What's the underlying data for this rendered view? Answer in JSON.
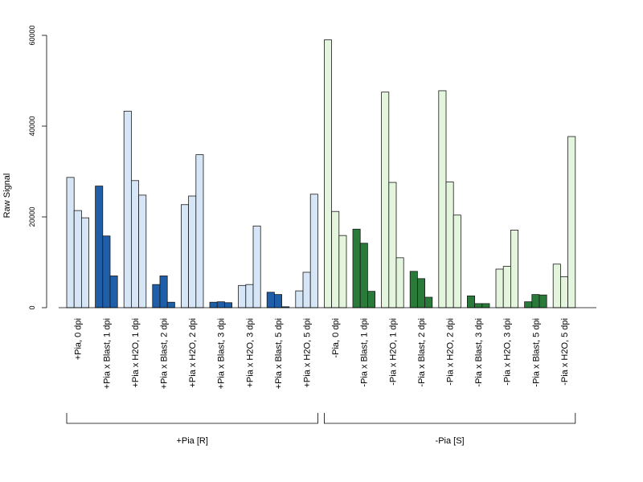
{
  "chart_data": {
    "type": "bar",
    "ylabel": "Raw Signal",
    "ylim": [
      0,
      60000
    ],
    "yticks": [
      0,
      20000,
      40000,
      60000
    ],
    "grid": false,
    "colors": {
      "light_blue": "#d6e6f7",
      "dark_blue": "#1f5ea8",
      "light_green": "#e3f5dc",
      "dark_green": "#2a7a3a"
    },
    "categories": [
      {
        "label": "+Pia, 0 dpi",
        "color": "light_blue",
        "values": [
          28700,
          21400,
          19800
        ]
      },
      {
        "label": "+Pia x Blast, 1 dpi",
        "color": "dark_blue",
        "values": [
          26800,
          15800,
          7000
        ]
      },
      {
        "label": "+Pia x H2O, 1 dpi",
        "color": "light_blue",
        "values": [
          43300,
          28000,
          24800
        ]
      },
      {
        "label": "+Pia x Blast, 2 dpi",
        "color": "dark_blue",
        "values": [
          5100,
          7000,
          1200
        ]
      },
      {
        "label": "+Pia x H2O, 2 dpi",
        "color": "light_blue",
        "values": [
          22700,
          24600,
          33700
        ]
      },
      {
        "label": "+Pia x Blast, 3 dpi",
        "color": "dark_blue",
        "values": [
          1200,
          1300,
          1100
        ]
      },
      {
        "label": "+Pia x H2O, 3 dpi",
        "color": "light_blue",
        "values": [
          4900,
          5100,
          18000
        ]
      },
      {
        "label": "+Pia x Blast, 5 dpi",
        "color": "dark_blue",
        "values": [
          3400,
          2900,
          200
        ]
      },
      {
        "label": "+Pia x H2O, 5 dpi",
        "color": "light_blue",
        "values": [
          3700,
          7800,
          25000
        ]
      },
      {
        "label": "-Pia, 0 dpi",
        "color": "light_green",
        "values": [
          59000,
          21200,
          15900
        ]
      },
      {
        "label": "-Pia x Blast, 1 dpi",
        "color": "dark_green",
        "values": [
          17300,
          14200,
          3600
        ]
      },
      {
        "label": "-Pia x H2O, 1 dpi",
        "color": "light_green",
        "values": [
          47500,
          27600,
          11000
        ]
      },
      {
        "label": "-Pia x Blast, 2 dpi",
        "color": "dark_green",
        "values": [
          8000,
          6400,
          2300
        ]
      },
      {
        "label": "-Pia x H2O, 2 dpi",
        "color": "light_green",
        "values": [
          47800,
          27700,
          20400
        ]
      },
      {
        "label": "-Pia x Blast, 3 dpi",
        "color": "dark_green",
        "values": [
          2600,
          900,
          900
        ]
      },
      {
        "label": "-Pia x H2O, 3 dpi",
        "color": "light_green",
        "values": [
          8500,
          9100,
          17100
        ]
      },
      {
        "label": "-Pia x Blast, 5 dpi",
        "color": "dark_green",
        "values": [
          1300,
          2900,
          2800
        ]
      },
      {
        "label": "-Pia x H2O, 5 dpi",
        "color": "light_green",
        "values": [
          9600,
          6800,
          37700
        ]
      }
    ],
    "groups": [
      {
        "label": "+Pia [R]",
        "first": 0,
        "last": 8
      },
      {
        "label": "-Pia [S]",
        "first": 9,
        "last": 17
      }
    ]
  }
}
